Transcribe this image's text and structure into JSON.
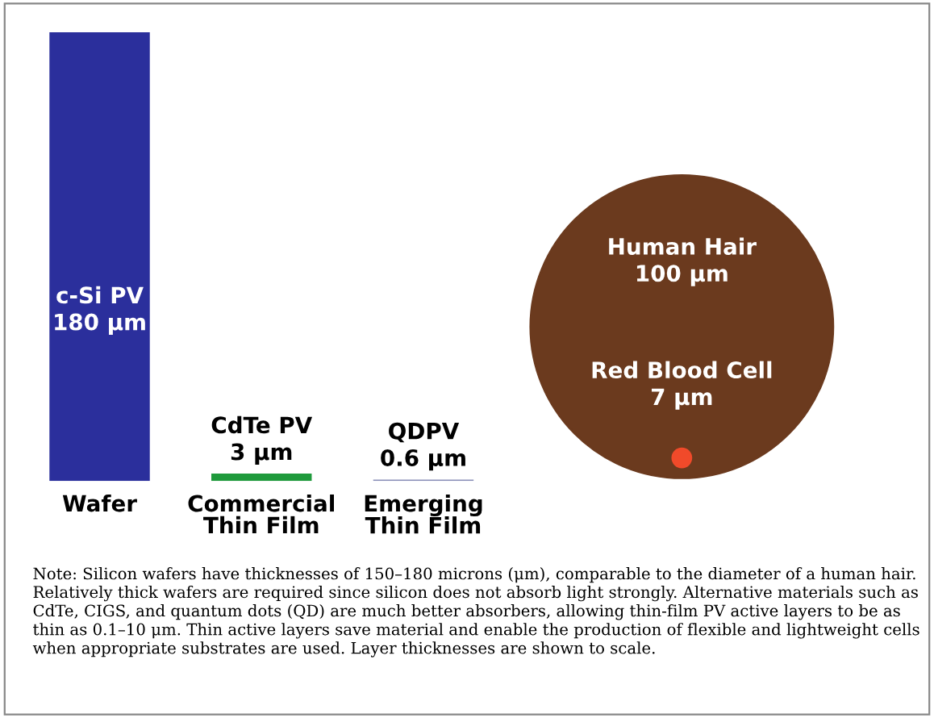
{
  "chart_data": [
    {
      "type": "bar",
      "categories": [
        "Wafer",
        "Commercial\nThin Film",
        "Emerging\nThin Film"
      ],
      "values": [
        180,
        3,
        0.6
      ],
      "colors": [
        "#2b2f9c",
        "#1f9a3c",
        "#8a8fb8"
      ],
      "value_labels": [
        "c-Si PV\n180 μm",
        "CdTe PV\n3 μm",
        "QDPV\n0.6 μm"
      ],
      "annotations": [
        "Note: Silicon wafers have thicknesses of 150–180 microns (μm), comparable to the diameter of a human hair. Relatively thick wafers are required since silicon does not absorb light strongly. Alternative materials such as CdTe, CIGS, and quantum dots (QD) are much better absorbers, allowing thin-film PV active layers to be as thin as 0.1–10 μm. Thin active layers save material and enable the production of flexible and lightweight cells when appropriate substrates are used. Layer thicknesses are shown to scale."
      ]
    },
    {
      "type": "other",
      "annotations": [
        "Human Hair\n100 μm",
        "Red Blood Cell\n7 μm"
      ]
    }
  ]
}
